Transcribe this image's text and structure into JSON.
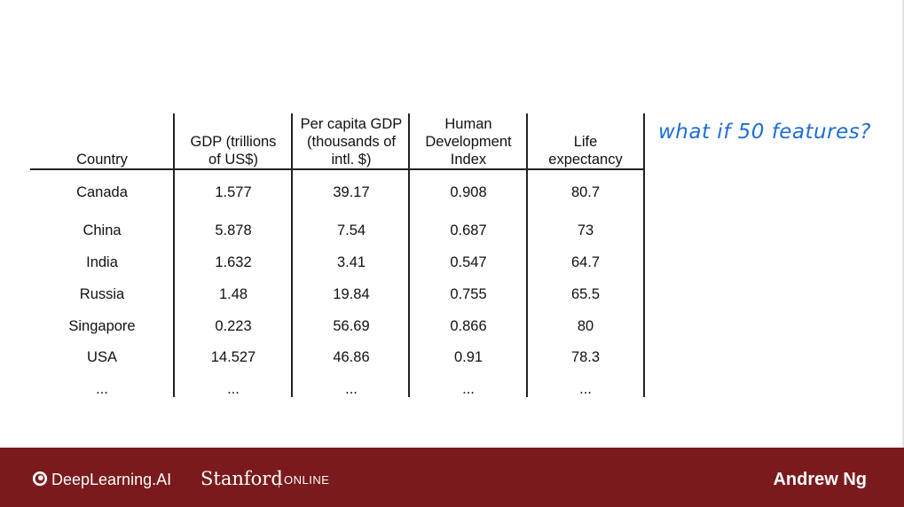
{
  "table": {
    "headers": [
      "Country",
      "GDP (trillions\nof US$)",
      "Per capita GDP\n(thousands of\nintl. $)",
      "Human\nDevelopment\nIndex",
      "Life\nexpectancy"
    ],
    "rows": [
      [
        "Canada",
        "1.577",
        "39.17",
        "0.908",
        "80.7"
      ],
      [
        "China",
        "5.878",
        "7.54",
        "0.687",
        "73"
      ],
      [
        "India",
        "1.632",
        "3.41",
        "0.547",
        "64.7"
      ],
      [
        "Russia",
        "1.48",
        "19.84",
        "0.755",
        "65.5"
      ],
      [
        "Singapore",
        "0.223",
        "56.69",
        "0.866",
        "80"
      ],
      [
        "USA",
        "14.527",
        "46.86",
        "0.91",
        "78.3"
      ],
      [
        "...",
        "...",
        "...",
        "...",
        "..."
      ]
    ]
  },
  "annotation": "what if 50 features?",
  "footer": {
    "brand": "DeepLearning.AI",
    "partner": "Stanford",
    "partner_suffix": "ONLINE",
    "author": "Andrew Ng",
    "bg_color": "#7b1a1c"
  }
}
